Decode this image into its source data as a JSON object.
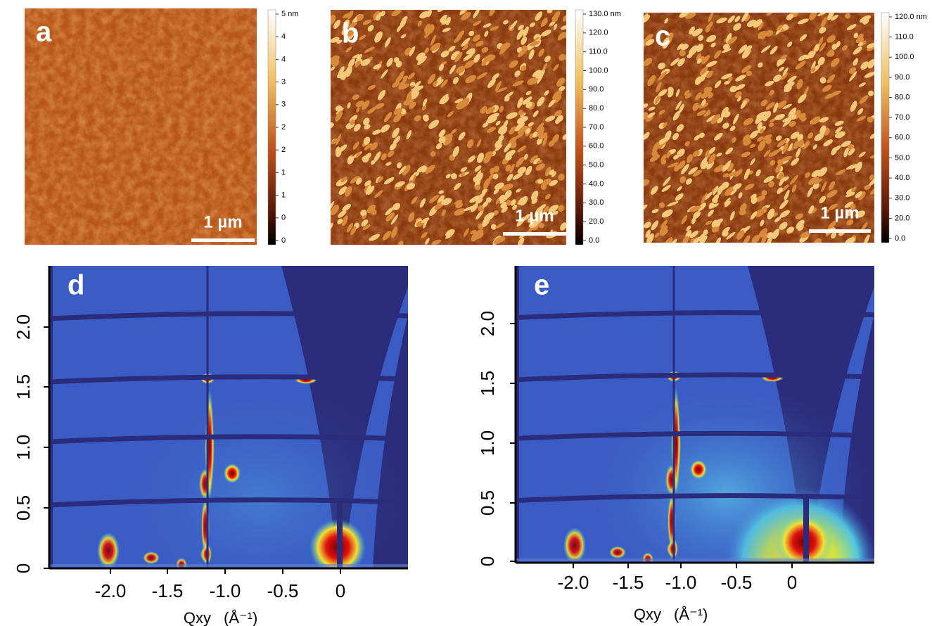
{
  "afm": [
    {
      "label": "a",
      "scale_bar": "1 µm",
      "colorbar": [
        "5 nm",
        "4",
        "4",
        "3",
        "3",
        "2",
        "2",
        "1",
        "1",
        "0",
        "0"
      ]
    },
    {
      "label": "b",
      "scale_bar": "1 µm",
      "colorbar": [
        "130.0 nm",
        "120.0",
        "110.0",
        "100.0",
        "90.0",
        "80.0",
        "70.0",
        "60.0",
        "50.0",
        "40.0",
        "30.0",
        "20.0",
        "0.0"
      ]
    },
    {
      "label": "c",
      "scale_bar": "1 µm",
      "colorbar": [
        "120.0 nm",
        "110.0",
        "100.0",
        "90.0",
        "80.0",
        "70.0",
        "60.0",
        "50.0",
        "40.0",
        "30.0",
        "20.0",
        "0.0"
      ]
    }
  ],
  "giwaxs": [
    {
      "label": "d",
      "x_ticks": [
        "-2.0",
        "-1.5",
        "-1.0",
        "-0.5",
        "0"
      ],
      "y_ticks": [
        "0",
        "0.5",
        "1.0",
        "1.5",
        "2.0"
      ],
      "x_label": "Qxy",
      "x_unit": "(Å⁻¹)"
    },
    {
      "label": "e",
      "x_ticks": [
        "-2.0",
        "-1.5",
        "-1.0",
        "-0.5",
        "0"
      ],
      "y_ticks": [
        "0",
        "0.5",
        "1.0",
        "1.5",
        "2.0"
      ],
      "x_label": "Qxy",
      "x_unit": "(Å⁻¹)"
    }
  ]
}
